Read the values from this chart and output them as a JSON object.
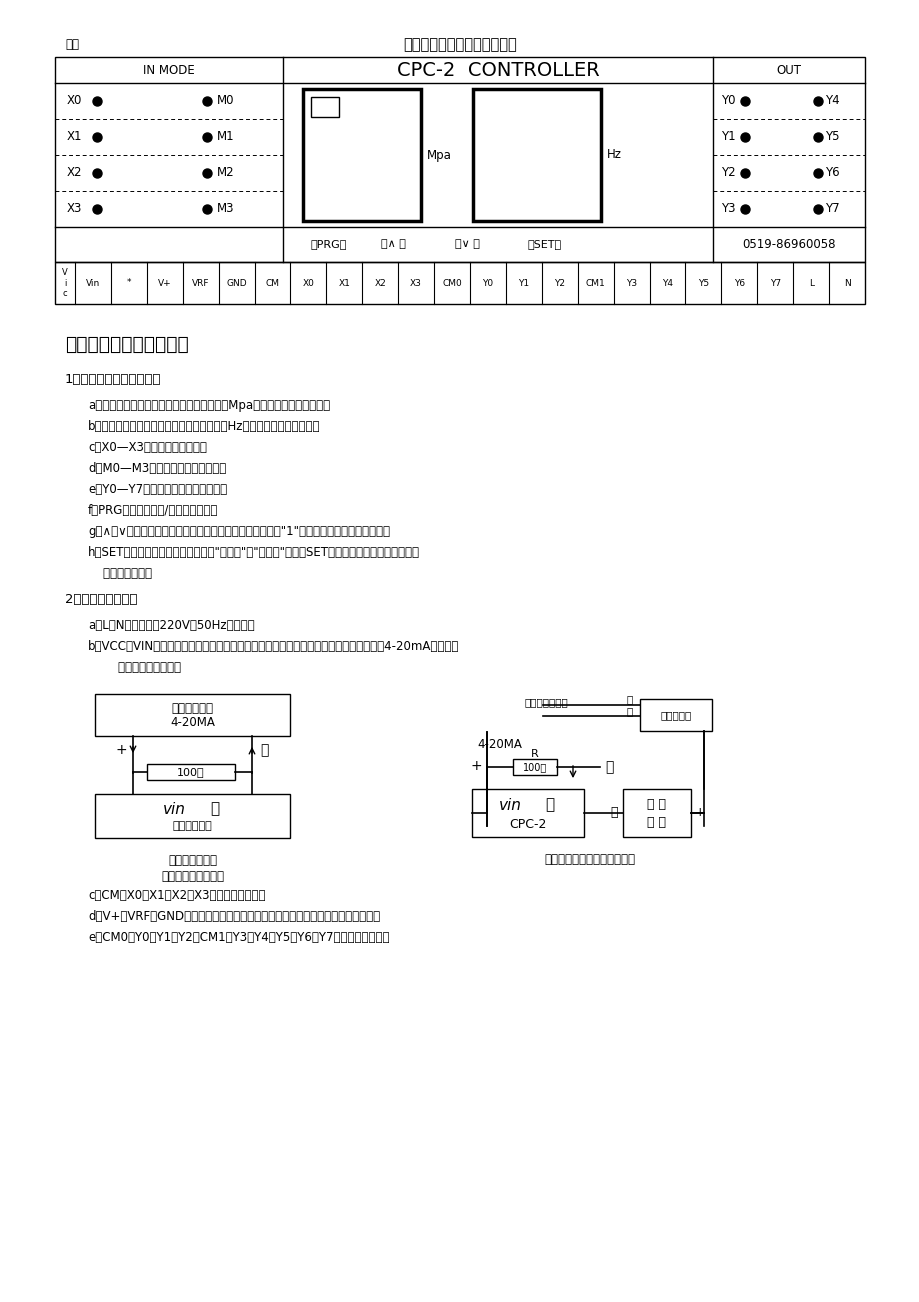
{
  "title_fig": "图一",
  "title_main": "控制器面板布置及端子排列图",
  "controller_title": "CPC-2  CONTROLLER",
  "section_in": "IN MODE",
  "section_out": "OUT",
  "mpa_label": "Mpa",
  "hz_label": "Hz",
  "prg_btn": "（PRG）",
  "up_btn": "（∧ ）",
  "down_btn": "（∨ ）",
  "set_btn": "（SET）",
  "phone": "0519-86960058",
  "left_labels": [
    "X0",
    "X1",
    "X2",
    "X3"
  ],
  "mode_labels": [
    "M0",
    "M1",
    "M2",
    "M3"
  ],
  "right_labels_left": [
    "Y0",
    "Y1",
    "Y2",
    "Y3"
  ],
  "right_labels_right": [
    "Y4",
    "Y5",
    "Y6",
    "Y7"
  ],
  "terminal_labels": [
    "Vic",
    "Vin",
    "*",
    "V+",
    "VRF",
    "GND",
    "CM",
    "X0",
    "X1",
    "X2",
    "X3",
    "CM0",
    "Y0",
    "Y1",
    "Y2",
    "CM1",
    "Y3",
    "Y4",
    "Y5",
    "Y6",
    "Y7",
    "L",
    "N"
  ],
  "section3_title": "三、操作面板及接线端子",
  "para1_title": "1：面板布置（参见图一）",
  "para1_items": [
    "a、左显示框（三位数字）：平时显示压力（Mpa），设定时显示参数值。",
    "b、右显示框（二位数字）：平时显示频率（Hz），设定时显示功能号。",
    "c、X0—X3指示灯：状态指示。",
    "d、M0—M3指示灯：工作模式指示。",
    "e、Y0—Y7指示灯：输出口有效指示。",
    "f、PRG键：正常显示/编程模式选择。",
    "g、∧和∨键：数值增、减键。按一次，相应数字增加或减少\"1\"若按下不放，则连续增或减。",
    "h、SET键：设定和移位键。轮换选择\"功能号\"或\"参数值\"。按压SET键，即可确认相应的功能号或",
    "    参数的设定值。"
  ],
  "para2_title": "2：端子接线及功能",
  "para2_items": [
    "a、L、N：交流电源220V，50Hz输入端。",
    "b、VCC、VIN、＊：压力信号模拟量输入端，同远传压力表相连（另附两种不同信号源的4-20mA电流信号",
    "        接线图，供参考）。"
  ],
  "circuit1_title1": "电流信号输出",
  "circuit1_title2": "4-20MA",
  "circuit1_resistor": "100欧",
  "circuit1_box_text1": "vin",
  "circuit1_box_text2": "＊",
  "circuit1_box_text3": "控制器输入端",
  "circuit1_caption1": "控制器外部输入",
  "circuit1_caption2": "电流信号的接线方式",
  "circuit2_label1": "变送器输出信号",
  "circuit2_label2": "绿",
  "circuit2_label3": "红",
  "circuit2_label4": "压力变送器",
  "circuit2_label5": "4-20MA",
  "circuit2_label6": "+",
  "circuit2_label7": "R",
  "circuit2_label8": "100欧",
  "circuit2_label9": "－",
  "circuit2_box1_text1": "vin",
  "circuit2_box1_text2": "＊",
  "circuit2_box1_text3": "CPC-2",
  "circuit2_box2_text1": "直 流",
  "circuit2_box2_text2": "电 源",
  "circuit2_caption": "采用二线制变送器的接线方式",
  "para3_items": [
    "c、CM、X0、X1、X2、X3：开关量输入端。",
    "d、V+、VRF、GND：模拟量（控制信号）输出端，与变频器的频率设定端子相连。",
    "e、CM0、Y0、Y1、Y2及CM1、Y3、Y4、Y5、Y6、Y7：开关量输出端。"
  ],
  "bg_color": "#ffffff"
}
